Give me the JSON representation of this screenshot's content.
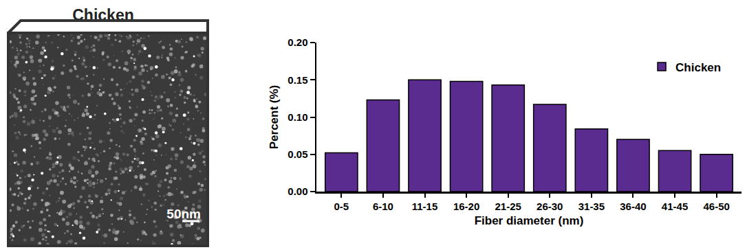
{
  "image_panel": {
    "title": "Chicken",
    "scale_bar": "50nm"
  },
  "chart_data": {
    "type": "bar",
    "categories": [
      "0-5",
      "6-10",
      "11-15",
      "16-20",
      "21-25",
      "26-30",
      "31-35",
      "36-40",
      "41-45",
      "46-50"
    ],
    "series": [
      {
        "name": "Chicken",
        "color": "#5b2c8f",
        "values": [
          0.052,
          0.123,
          0.15,
          0.148,
          0.143,
          0.117,
          0.084,
          0.07,
          0.055,
          0.05
        ]
      }
    ],
    "x_label": "Fiber diameter (nm)",
    "y_label": "Percent (%)",
    "ylim": [
      0,
      0.2
    ],
    "yticks": [
      {
        "value": 0,
        "label": "0.00"
      },
      {
        "value": 0.05,
        "label": "0.05"
      },
      {
        "value": 0.1,
        "label": "0.10"
      },
      {
        "value": 0.15,
        "label": "0.15"
      },
      {
        "value": 0.2,
        "label": "0.20"
      }
    ],
    "grid": false,
    "legend": "upper right"
  }
}
